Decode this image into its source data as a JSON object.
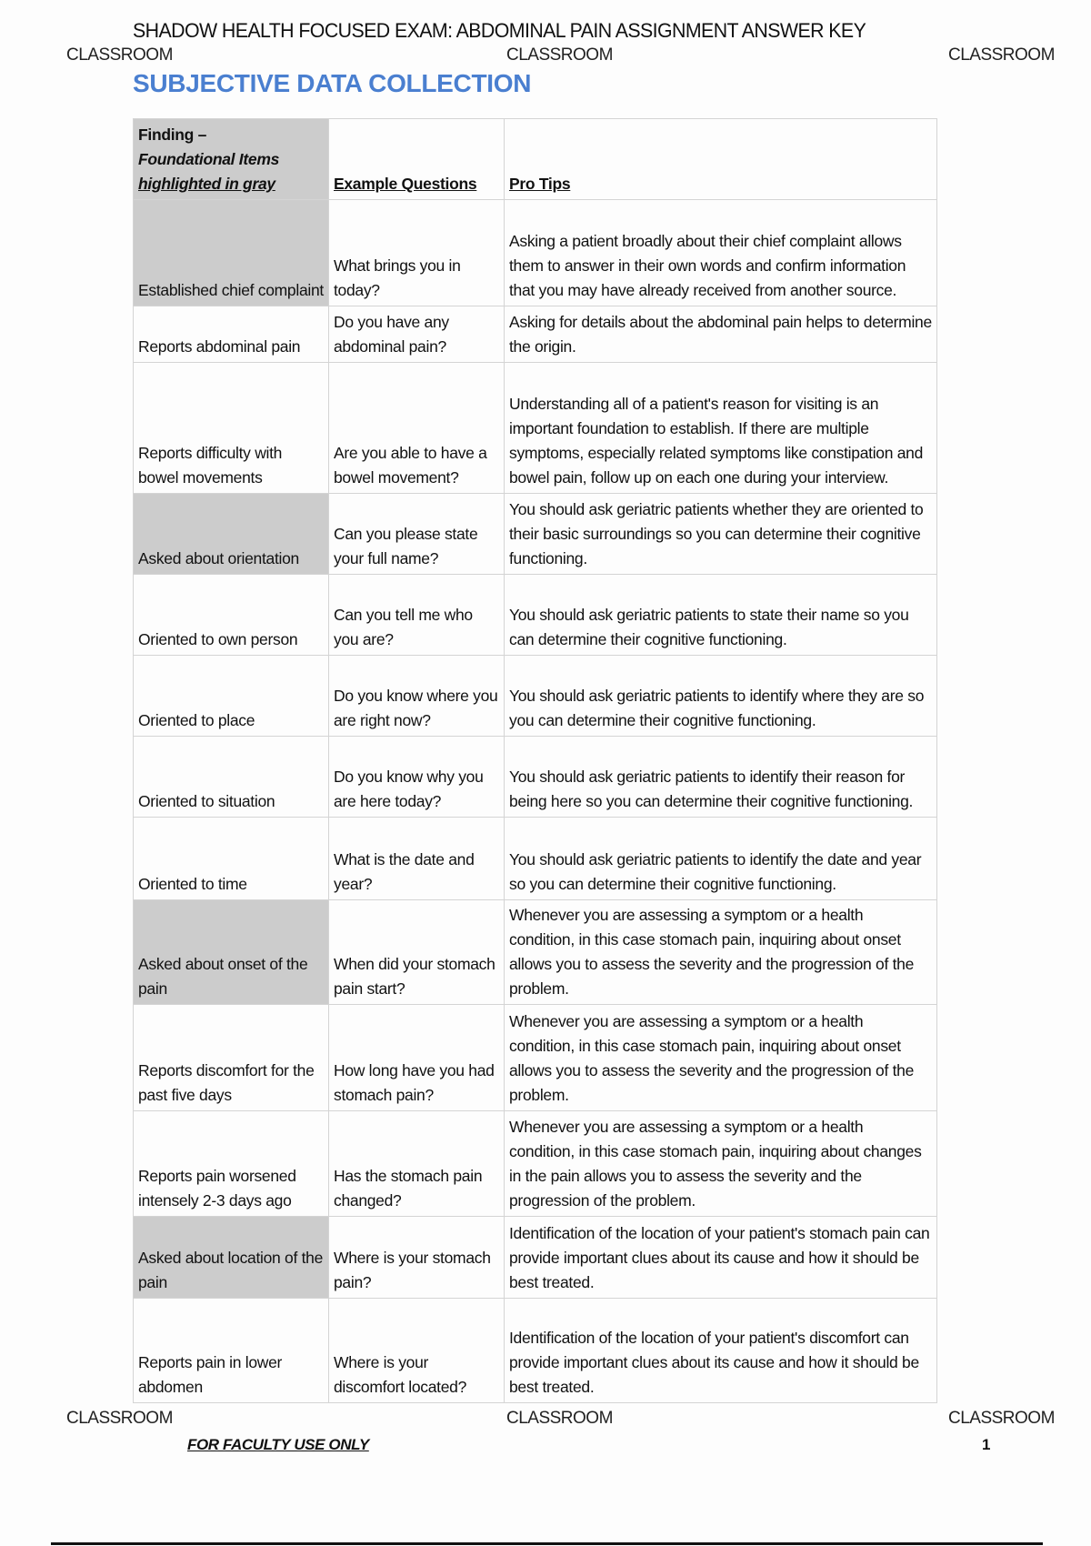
{
  "header": {
    "title": "SHADOW HEALTH FOCUSED EXAM: ABDOMINAL PAIN ASSIGNMENT ANSWER KEY",
    "watermark": "CLASSROOM"
  },
  "section_title": "SUBJECTIVE DATA COLLECTION",
  "table": {
    "headers": {
      "finding_line1": "Finding –",
      "finding_line2": "Foundational Items",
      "finding_line3": "highlighted in gray",
      "questions": "Example Questions",
      "tips": "Pro Tips"
    },
    "rows": [
      {
        "finding": "Established chief complaint",
        "question": "What brings you in today?",
        "tip": "Asking a patient broadly about their chief complaint allows them to answer in their own words and confirm information that you may have already received from another source.",
        "foundational": true
      },
      {
        "finding": "Reports abdominal pain",
        "question": "Do you have any abdominal pain?",
        "tip": "Asking for details about the abdominal pain helps to determine the origin.",
        "foundational": false
      },
      {
        "finding": "Reports difficulty with bowel movements",
        "question": "Are you able to have a bowel movement?",
        "tip": "Understanding all of a patient's reason for visiting is an important foundation to establish. If there are multiple symptoms, especially related symptoms like constipation and bowel pain, follow up on each one during your interview.",
        "foundational": false
      },
      {
        "finding": "Asked about orientation",
        "question": "Can you please state your full name?",
        "tip": "You should ask geriatric patients whether they are oriented to their basic surroundings so you can determine their cognitive functioning.",
        "foundational": true
      },
      {
        "finding": "Oriented to own person",
        "question": "Can you tell me who you are?",
        "tip": "You should ask geriatric patients to state their name so you can determine their cognitive functioning.",
        "foundational": false
      },
      {
        "finding": "Oriented to place",
        "question": "Do you know where you are right now?",
        "tip": "You should ask geriatric patients to identify where they are so you can determine their cognitive functioning.",
        "foundational": false
      },
      {
        "finding": "Oriented to situation",
        "question": "Do you know why you are here today?",
        "tip": "You should ask geriatric patients to identify their reason for being here so you can determine their cognitive functioning.",
        "foundational": false
      },
      {
        "finding": "Oriented to time",
        "question": "What is the date and year?",
        "tip": "You should ask geriatric patients to identify the date and year so you can determine their cognitive functioning.",
        "foundational": false
      },
      {
        "finding": "Asked about onset of the pain",
        "question": "When did your stomach pain start?",
        "tip": "Whenever you are assessing a symptom or a health condition, in this case stomach pain, inquiring about onset allows you to assess the severity and the progression of the problem.",
        "foundational": true
      },
      {
        "finding": "Reports discomfort for the past five days",
        "question": "How long have you had stomach pain?",
        "tip": "Whenever you are assessing a symptom or a health condition, in this case stomach pain, inquiring about onset allows you to assess the severity and the progression of the problem.",
        "foundational": false
      },
      {
        "finding": "Reports pain worsened intensely 2-3 days ago",
        "question": "Has the stomach pain changed?",
        "tip": "Whenever you are assessing a symptom or a health condition, in this case stomach pain, inquiring about changes in the pain allows you to assess the severity and the progression of the problem.",
        "foundational": false
      },
      {
        "finding": "Asked about location of the pain",
        "question": "Where is your stomach pain?",
        "tip": "Identification of the location of your patient's stomach pain can provide important clues about its cause and how it should be best treated.",
        "foundational": true
      },
      {
        "finding": "Reports pain in lower abdomen",
        "question": "Where is your discomfort located?",
        "tip": "Identification of the location of your patient's discomfort can provide important clues about its cause and how it should be best treated.",
        "foundational": false
      }
    ]
  },
  "footer": {
    "label": "FOR FACULTY USE ONLY",
    "page_number": "1"
  },
  "colors": {
    "section_title": "#4a7fd0",
    "foundational_highlight": "#cccccc"
  }
}
